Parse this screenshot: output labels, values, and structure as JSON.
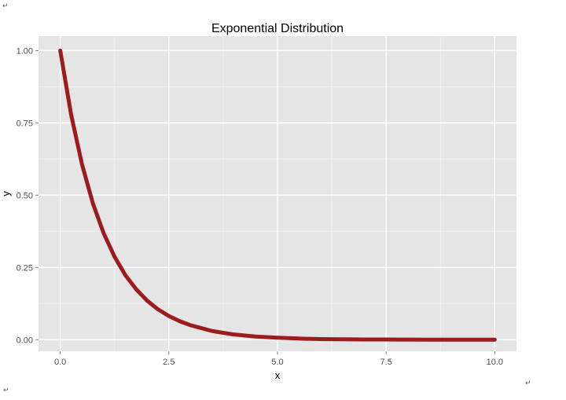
{
  "chart_data": {
    "type": "line",
    "title": "Exponential Distribution",
    "xlabel": "x",
    "ylabel": "y",
    "xlim": [
      -0.5,
      10.5
    ],
    "ylim": [
      -0.04,
      1.05
    ],
    "x_ticks": [
      0,
      2.5,
      5,
      7.5,
      10
    ],
    "x_tick_labels": [
      "0.0",
      "2.5",
      "5.0",
      "7.5",
      "10.0"
    ],
    "y_ticks": [
      0,
      0.25,
      0.5,
      0.75,
      1
    ],
    "y_tick_labels": [
      "0.00",
      "0.25",
      "0.50",
      "0.75",
      "1.00"
    ],
    "grid": true,
    "legend": "none",
    "series": [
      {
        "x": [
          0,
          0.25,
          0.5,
          0.75,
          1,
          1.25,
          1.5,
          1.75,
          2,
          2.25,
          2.5,
          2.75,
          3,
          3.5,
          4,
          4.5,
          5,
          5.5,
          6,
          6.5,
          7,
          7.5,
          8,
          8.5,
          9,
          9.5,
          10
        ],
        "y": [
          1,
          0.779,
          0.607,
          0.472,
          0.368,
          0.287,
          0.223,
          0.174,
          0.135,
          0.105,
          0.082,
          0.064,
          0.05,
          0.03,
          0.018,
          0.011,
          0.007,
          0.004,
          0.002,
          0.0015,
          0.0009,
          0.0006,
          0.0003,
          0.0002,
          0.0001,
          0.0001,
          4.54e-05
        ],
        "color": "#9b1c1c"
      }
    ],
    "colors": {
      "panel_background": "#e5e5e5",
      "major_grid": "#ffffff",
      "minor_grid": "#f2f2f2",
      "line": "#9b1c1c"
    }
  }
}
